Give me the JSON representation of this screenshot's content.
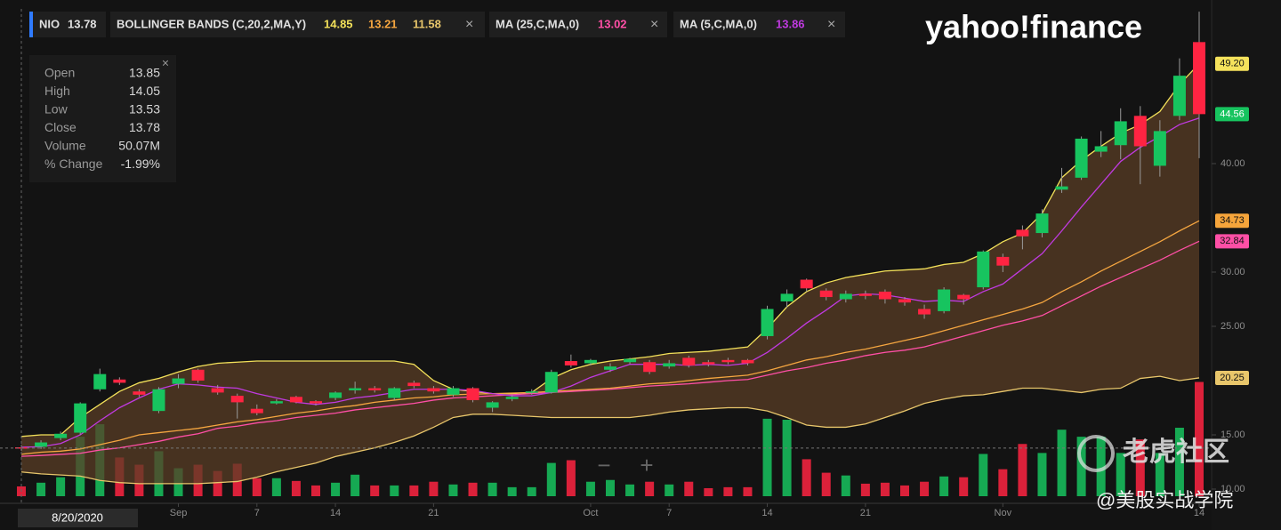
{
  "header": {
    "logo": "yahoo!finance"
  },
  "watermark": {
    "community": "老虎社区",
    "author": "@美股实战学院"
  },
  "zoom": [
    "−",
    "+"
  ],
  "chart_data": {
    "type": "candlestick",
    "symbol": "NIO",
    "date_label": "8/20/2020",
    "categories": [
      null,
      null,
      null,
      null,
      null,
      null,
      null,
      null,
      "Sep",
      null,
      null,
      null,
      "7",
      null,
      null,
      null,
      "14",
      null,
      null,
      null,
      null,
      "21",
      null,
      null,
      null,
      null,
      null,
      null,
      null,
      "Oct",
      null,
      null,
      null,
      "7",
      null,
      null,
      null,
      null,
      "14",
      null,
      null,
      null,
      null,
      "21",
      null,
      null,
      null,
      null,
      null,
      null,
      "Nov",
      null,
      null,
      null,
      null,
      null,
      null,
      null,
      null,
      null,
      "14"
    ],
    "open": [
      13.85,
      13.9,
      14.7,
      15.2,
      19.2,
      20.1,
      19.0,
      17.2,
      19.7,
      21.0,
      19.3,
      18.6,
      17.4,
      17.9,
      18.5,
      18.1,
      18.4,
      19.1,
      19.3,
      18.4,
      19.8,
      19.3,
      18.7,
      19.3,
      17.5,
      18.3,
      18.9,
      18.9,
      21.8,
      21.6,
      21.0,
      21.7,
      21.7,
      21.3,
      22.1,
      21.7,
      21.9,
      21.9,
      24.1,
      27.3,
      29.3,
      28.3,
      27.5,
      28.0,
      28.2,
      27.5,
      26.6,
      26.4,
      27.9,
      28.6,
      31.4,
      33.9,
      33.6,
      37.6,
      38.7,
      41.1,
      41.7,
      44.4,
      39.8,
      44.4,
      51.2
    ],
    "high": [
      14.05,
      14.5,
      15.3,
      18.0,
      21.1,
      20.3,
      19.2,
      19.4,
      20.6,
      21.1,
      19.6,
      18.8,
      17.8,
      18.3,
      18.6,
      18.2,
      19.0,
      19.9,
      19.5,
      19.4,
      20.0,
      19.5,
      19.5,
      19.4,
      18.1,
      18.7,
      19.2,
      21.0,
      22.4,
      22.0,
      21.6,
      22.1,
      21.9,
      21.9,
      22.3,
      21.9,
      22.1,
      22.0,
      26.9,
      28.4,
      29.4,
      28.5,
      28.3,
      28.3,
      28.4,
      27.7,
      27.0,
      28.6,
      28.0,
      32.0,
      31.7,
      34.3,
      35.8,
      39.6,
      42.5,
      43.0,
      45.1,
      45.3,
      44.0,
      49.7,
      54.0
    ],
    "low": [
      13.53,
      13.7,
      14.5,
      15.0,
      19.0,
      19.6,
      18.5,
      17.0,
      19.3,
      19.8,
      18.7,
      16.5,
      16.8,
      17.8,
      17.9,
      17.7,
      18.2,
      18.8,
      18.9,
      18.2,
      19.3,
      18.8,
      18.5,
      18.0,
      17.1,
      18.1,
      18.7,
      18.8,
      21.2,
      21.4,
      20.8,
      21.5,
      20.6,
      21.1,
      21.2,
      21.3,
      21.5,
      21.4,
      23.8,
      26.7,
      28.2,
      27.4,
      27.2,
      27.5,
      27.1,
      26.9,
      25.7,
      26.2,
      27.0,
      28.4,
      30.0,
      32.1,
      33.2,
      37.3,
      38.5,
      40.6,
      40.4,
      38.1,
      38.8,
      44.0,
      40.5
    ],
    "close": [
      13.78,
      14.3,
      15.1,
      17.9,
      20.6,
      19.8,
      18.7,
      19.2,
      20.2,
      20.0,
      18.9,
      18.0,
      17.0,
      18.1,
      18.0,
      17.9,
      18.9,
      19.3,
      19.1,
      19.3,
      19.5,
      19.0,
      19.3,
      18.2,
      18.0,
      18.5,
      19.0,
      20.8,
      21.4,
      21.9,
      21.3,
      22.0,
      20.8,
      21.6,
      21.4,
      21.5,
      21.7,
      21.6,
      26.6,
      28.0,
      28.5,
      27.7,
      28.0,
      27.8,
      27.5,
      27.2,
      26.1,
      28.4,
      27.5,
      31.9,
      30.6,
      33.3,
      35.4,
      37.9,
      42.3,
      41.6,
      43.9,
      41.6,
      43.0,
      48.1,
      44.56
    ],
    "volume": [
      50.07,
      69,
      97,
      304,
      368,
      198,
      161,
      230,
      143,
      161,
      129,
      166,
      92,
      92,
      78,
      55,
      69,
      110,
      55,
      55,
      55,
      74,
      60,
      69,
      69,
      46,
      46,
      170,
      184,
      74,
      83,
      60,
      74,
      60,
      74,
      41,
      46,
      46,
      396,
      391,
      189,
      120,
      106,
      64,
      69,
      55,
      74,
      101,
      97,
      216,
      138,
      267,
      221,
      340,
      304,
      304,
      221,
      290,
      221,
      350,
      584
    ],
    "up_color": "#17c45f",
    "down_color": "#ff2442",
    "ylim": [
      8.77,
      54.26
    ],
    "yticks": [
      {
        "value": 10,
        "label": "10.00"
      },
      {
        "value": 15,
        "label": "15.00"
      },
      {
        "value": 25,
        "label": "25.00"
      },
      {
        "value": 30,
        "label": "30.00"
      },
      {
        "value": 40,
        "label": "40.00"
      }
    ],
    "indicators": [
      {
        "name": "BOLLINGER BANDS (C,20,2,MA,Y)",
        "fill": "#5a3d26",
        "lines": [
          {
            "color": "#f3e15a",
            "values": [
              14.85,
              15.0,
              15.0,
              16.6,
              17.8,
              19.0,
              19.8,
              20.2,
              20.8,
              21.3,
              21.6,
              21.7,
              21.8,
              21.8,
              21.8,
              21.8,
              21.8,
              21.8,
              21.8,
              21.8,
              21.5,
              20.0,
              19.2,
              19.0,
              18.8,
              18.8,
              18.9,
              20.2,
              21.0,
              21.5,
              21.8,
              22.0,
              22.2,
              22.5,
              22.6,
              22.7,
              22.9,
              23.1,
              24.8,
              26.8,
              28.2,
              29.0,
              29.5,
              29.8,
              30.1,
              30.2,
              30.3,
              30.7,
              30.9,
              31.7,
              32.8,
              33.6,
              35.4,
              38.7,
              40.3,
              41.6,
              42.8,
              43.6,
              44.8,
              47.3,
              49.2
            ]
          },
          {
            "color": "#f5a640",
            "values": [
              13.21,
              13.4,
              13.5,
              13.7,
              14.1,
              14.5,
              15.0,
              15.2,
              15.4,
              15.6,
              15.9,
              16.2,
              16.4,
              16.7,
              17.0,
              17.2,
              17.5,
              17.7,
              18.0,
              18.2,
              18.4,
              18.5,
              18.7,
              18.75,
              18.8,
              18.85,
              18.9,
              19.0,
              19.1,
              19.2,
              19.3,
              19.5,
              19.7,
              19.8,
              20.0,
              20.2,
              20.35,
              20.5,
              20.9,
              21.4,
              21.9,
              22.2,
              22.6,
              22.9,
              23.3,
              23.7,
              24.1,
              24.6,
              25.1,
              25.6,
              26.1,
              26.6,
              27.2,
              28.2,
              29.1,
              30.1,
              31.0,
              31.9,
              32.8,
              33.8,
              34.73
            ]
          },
          {
            "color": "#e8c66b",
            "values": [
              11.58,
              11.4,
              11.3,
              11.2,
              10.8,
              10.6,
              10.5,
              10.5,
              10.5,
              10.5,
              10.6,
              10.7,
              11.1,
              11.6,
              12.0,
              12.4,
              13.0,
              13.4,
              13.8,
              14.3,
              14.9,
              15.7,
              16.6,
              16.9,
              16.9,
              16.8,
              16.7,
              16.6,
              16.6,
              16.6,
              16.6,
              16.6,
              16.8,
              17.1,
              17.3,
              17.4,
              17.5,
              17.5,
              17.2,
              16.6,
              15.9,
              15.7,
              15.7,
              16.0,
              16.6,
              17.2,
              17.9,
              18.3,
              18.6,
              18.7,
              19.0,
              19.3,
              19.3,
              19.1,
              18.9,
              19.2,
              19.3,
              20.2,
              20.4,
              20.0,
              20.25
            ]
          }
        ]
      },
      {
        "name": "MA (25,C,MA,0)",
        "lines": [
          {
            "color": "#ff4fa6",
            "values": [
              13.02,
              13.1,
              13.2,
              13.3,
              13.6,
              13.8,
              14.1,
              14.4,
              14.8,
              15.1,
              15.6,
              15.8,
              16.1,
              16.3,
              16.6,
              16.8,
              17.0,
              17.3,
              17.5,
              17.7,
              17.9,
              18.2,
              18.4,
              18.5,
              18.6,
              18.7,
              18.8,
              18.9,
              19.0,
              19.1,
              19.2,
              19.35,
              19.5,
              19.6,
              19.7,
              19.85,
              20.0,
              20.1,
              20.5,
              20.9,
              21.2,
              21.6,
              21.9,
              22.3,
              22.6,
              22.8,
              23.1,
              23.6,
              24.1,
              24.6,
              25.1,
              25.5,
              26.0,
              26.9,
              27.8,
              28.7,
              29.5,
              30.3,
              31.1,
              32.0,
              32.84
            ]
          }
        ]
      },
      {
        "name": "MA (5,C,MA,0)",
        "lines": [
          {
            "color": "#c03ae0",
            "values": [
              13.86,
              13.9,
              14.2,
              15.0,
              16.3,
              17.5,
              18.4,
              19.2,
              19.7,
              19.6,
              19.4,
              19.3,
              18.8,
              18.4,
              18.0,
              17.8,
              18.0,
              18.4,
              18.6,
              18.9,
              19.2,
              19.2,
              19.2,
              19.1,
              18.8,
              18.6,
              18.6,
              18.9,
              19.5,
              20.3,
              20.9,
              21.5,
              21.5,
              21.5,
              21.4,
              21.5,
              21.4,
              21.6,
              22.6,
              23.9,
              25.3,
              26.5,
              27.8,
              28.0,
              27.9,
              27.6,
              27.3,
              27.4,
              27.3,
              28.2,
              28.9,
              30.3,
              31.7,
              33.8,
              36.0,
              38.1,
              40.2,
              41.5,
              42.5,
              43.6,
              44.2
            ]
          }
        ]
      }
    ],
    "badges": [
      {
        "value": 49.2,
        "label": "49.20",
        "color": "#f5e25c"
      },
      {
        "value": 44.56,
        "label": "44.56",
        "color": "#17c45f"
      },
      {
        "value": 34.73,
        "label": "34.73",
        "color": "#f6a53b"
      },
      {
        "value": 32.84,
        "label": "32.84",
        "color": "#ff4fa6"
      },
      {
        "value": 20.25,
        "label": "20.25",
        "color": "#e8c66b"
      }
    ],
    "tooltip": {
      "labels": [
        "Open",
        "High",
        "Low",
        "Close",
        "Volume",
        "% Change"
      ],
      "volume": "50.07M",
      "change": "-1.99%"
    }
  }
}
